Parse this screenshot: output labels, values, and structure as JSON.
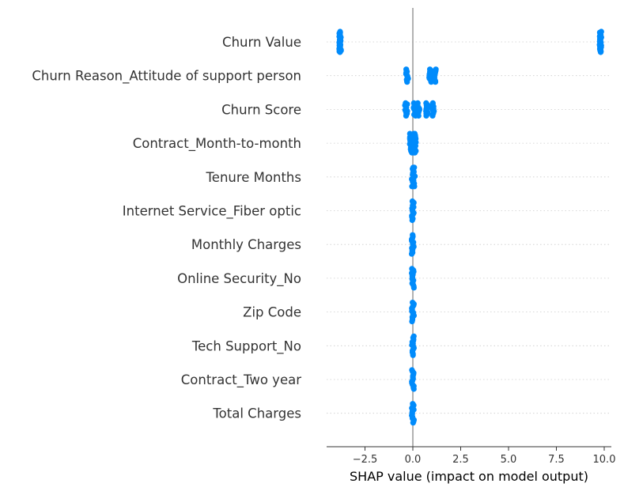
{
  "chart_data": {
    "type": "scatter",
    "subtype": "shap-summary-beeswarm",
    "title": "",
    "xlabel": "SHAP value (impact on model output)",
    "ylabel": "",
    "xlim": [
      -4.5,
      10.5
    ],
    "xticks": [
      -2.5,
      0.0,
      2.5,
      5.0,
      7.5,
      10.0
    ],
    "xtick_labels": [
      "−2.5",
      "0.0",
      "2.5",
      "5.0",
      "7.5",
      "10.0"
    ],
    "grid": false,
    "legend": "none",
    "dot_color": "#008bfb",
    "zero_line_color": "#999999",
    "features": [
      {
        "name": "Churn Value",
        "shap_clusters": [
          -3.8,
          9.8
        ]
      },
      {
        "name": "Churn Reason_Attitude of support person",
        "shap_clusters": [
          -0.3,
          0.9,
          1.15
        ]
      },
      {
        "name": "Churn Score",
        "shap_clusters": [
          -0.35,
          0.1,
          0.3,
          0.75,
          1.05
        ]
      },
      {
        "name": "Contract_Month-to-month",
        "shap_clusters": [
          -0.1,
          0.05,
          0.1
        ]
      },
      {
        "name": "Tenure Months",
        "shap_clusters": [
          0.0,
          0.05
        ]
      },
      {
        "name": "Internet Service_Fiber optic",
        "shap_clusters": [
          0.0
        ]
      },
      {
        "name": "Monthly Charges",
        "shap_clusters": [
          0.0
        ]
      },
      {
        "name": "Online Security_No",
        "shap_clusters": [
          0.0
        ]
      },
      {
        "name": "Zip Code",
        "shap_clusters": [
          0.0
        ]
      },
      {
        "name": "Tech Support_No",
        "shap_clusters": [
          0.0
        ]
      },
      {
        "name": "Contract_Two year",
        "shap_clusters": [
          0.0
        ]
      },
      {
        "name": "Total Charges",
        "shap_clusters": [
          0.0
        ]
      }
    ]
  }
}
